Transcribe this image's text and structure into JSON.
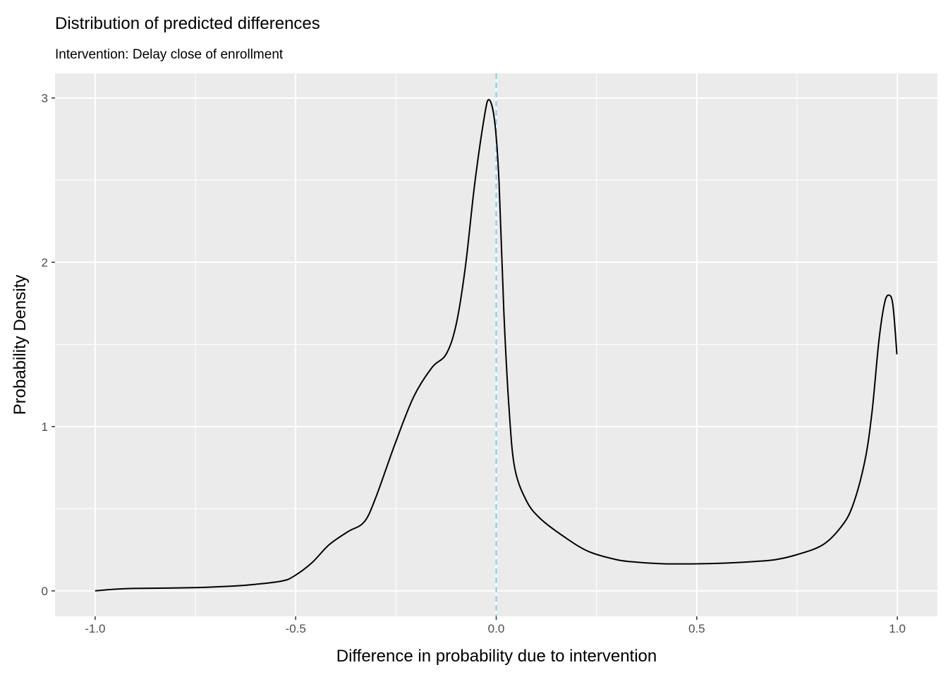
{
  "chart_data": {
    "type": "line",
    "title": "Distribution of predicted differences",
    "subtitle": "Intervention: Delay close of enrollment",
    "xlabel": "Difference in probability due to intervention",
    "ylabel": "Probability Density",
    "xlim": [
      -1.1,
      1.1
    ],
    "ylim": [
      -0.155,
      3.15
    ],
    "x_ticks": [
      -1,
      -0.5,
      0,
      0.5,
      1
    ],
    "x_tick_labels": [
      "-1.0",
      "-0.5",
      "0.0",
      "0.5",
      "1.0"
    ],
    "y_ticks": [
      0,
      1,
      2,
      3
    ],
    "y_tick_labels": [
      "0",
      "1",
      "2",
      "3"
    ],
    "grid": true,
    "background": "#EBEBEB",
    "line_color": "#000000",
    "reference_line": {
      "x": 0,
      "style": "dashed",
      "color": "#87CEEB"
    },
    "series": [
      {
        "x": [
          -1.0,
          -0.95,
          -0.9,
          -0.75,
          -0.65,
          -0.6,
          -0.534,
          -0.504,
          -0.46,
          -0.417,
          -0.37,
          -0.329,
          -0.3,
          -0.253,
          -0.206,
          -0.16,
          -0.125,
          -0.1,
          -0.077,
          -0.054,
          -0.03,
          -0.018,
          -0.004,
          0.007,
          0.019,
          0.032,
          0.046,
          0.075,
          0.11,
          0.169,
          0.23,
          0.3,
          0.35,
          0.42,
          0.5,
          0.58,
          0.65,
          0.696,
          0.749,
          0.814,
          0.86,
          0.889,
          0.919,
          0.937,
          0.954,
          0.968,
          0.979,
          0.989,
          0.999
        ],
        "y": [
          0.0,
          0.01,
          0.015,
          0.02,
          0.03,
          0.04,
          0.06,
          0.09,
          0.17,
          0.28,
          0.36,
          0.42,
          0.57,
          0.89,
          1.18,
          1.36,
          1.44,
          1.62,
          1.97,
          2.47,
          2.88,
          2.99,
          2.86,
          2.49,
          1.7,
          1.11,
          0.75,
          0.55,
          0.44,
          0.33,
          0.24,
          0.19,
          0.175,
          0.165,
          0.165,
          0.17,
          0.18,
          0.19,
          0.22,
          0.28,
          0.39,
          0.52,
          0.79,
          1.09,
          1.52,
          1.75,
          1.8,
          1.74,
          1.44
        ]
      }
    ]
  }
}
